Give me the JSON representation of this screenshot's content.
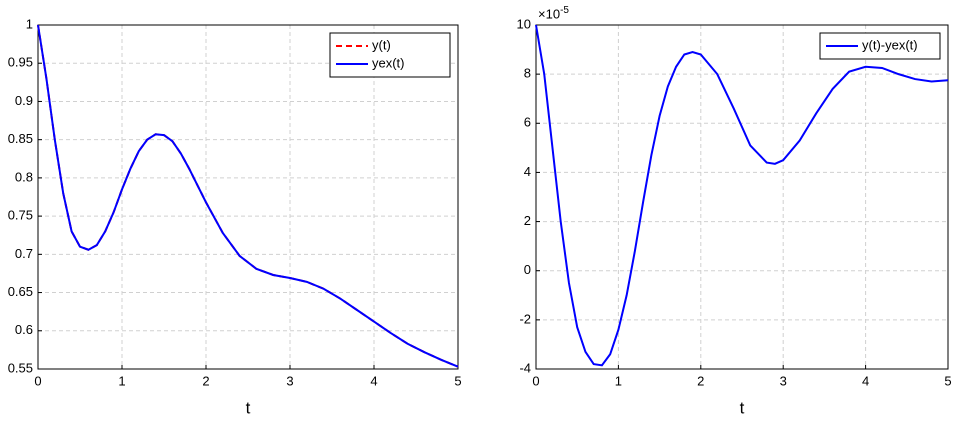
{
  "chart_data": [
    {
      "type": "line",
      "xlabel": "t",
      "x": [
        0,
        0.1,
        0.2,
        0.3,
        0.4,
        0.5,
        0.6,
        0.7,
        0.8,
        0.9,
        1.0,
        1.1,
        1.2,
        1.3,
        1.4,
        1.5,
        1.6,
        1.7,
        1.8,
        1.9,
        2.0,
        2.2,
        2.4,
        2.6,
        2.8,
        3.0,
        3.2,
        3.4,
        3.6,
        3.8,
        4.0,
        4.2,
        4.4,
        4.6,
        4.8,
        5.0
      ],
      "series": [
        {
          "name": "y(t)",
          "color": "#ff0000",
          "dashed": true,
          "values": [
            1.0,
            0.93,
            0.85,
            0.78,
            0.73,
            0.71,
            0.706,
            0.712,
            0.73,
            0.755,
            0.785,
            0.812,
            0.835,
            0.85,
            0.857,
            0.856,
            0.848,
            0.832,
            0.812,
            0.79,
            0.768,
            0.728,
            0.698,
            0.681,
            0.673,
            0.669,
            0.664,
            0.655,
            0.642,
            0.627,
            0.612,
            0.597,
            0.583,
            0.572,
            0.562,
            0.553
          ]
        },
        {
          "name": "yex(t)",
          "color": "#0000ff",
          "dashed": false,
          "values": [
            1.0,
            0.93,
            0.85,
            0.78,
            0.73,
            0.71,
            0.706,
            0.712,
            0.73,
            0.755,
            0.785,
            0.812,
            0.835,
            0.85,
            0.857,
            0.856,
            0.848,
            0.832,
            0.812,
            0.79,
            0.768,
            0.728,
            0.698,
            0.681,
            0.673,
            0.669,
            0.664,
            0.655,
            0.642,
            0.627,
            0.612,
            0.597,
            0.583,
            0.572,
            0.562,
            0.553
          ]
        }
      ],
      "xlim": [
        0,
        5
      ],
      "xticks": [
        0,
        1,
        2,
        3,
        4,
        5
      ],
      "ylim": [
        0.55,
        1
      ],
      "yticks": [
        0.55,
        0.6,
        0.65,
        0.7,
        0.75,
        0.8,
        0.85,
        0.9,
        0.95,
        1
      ],
      "grid": true,
      "legend": "upper right"
    },
    {
      "type": "line",
      "xlabel": "t",
      "y_multiplier": "×10",
      "y_exponent": "-5",
      "x": [
        0,
        0.1,
        0.2,
        0.3,
        0.4,
        0.5,
        0.6,
        0.7,
        0.8,
        0.9,
        1.0,
        1.1,
        1.2,
        1.3,
        1.4,
        1.5,
        1.6,
        1.7,
        1.8,
        1.9,
        2.0,
        2.2,
        2.4,
        2.6,
        2.8,
        2.9,
        3.0,
        3.2,
        3.4,
        3.6,
        3.8,
        4.0,
        4.2,
        4.4,
        4.6,
        4.8,
        5.0
      ],
      "series": [
        {
          "name": "y(t)-yex(t)",
          "color": "#0000ff",
          "dashed": false,
          "values": [
            10,
            8,
            5,
            2,
            -0.5,
            -2.3,
            -3.3,
            -3.8,
            -3.85,
            -3.4,
            -2.4,
            -1,
            0.8,
            2.8,
            4.7,
            6.3,
            7.5,
            8.3,
            8.8,
            8.9,
            8.8,
            8.0,
            6.6,
            5.1,
            4.4,
            4.35,
            4.5,
            5.3,
            6.4,
            7.4,
            8.1,
            8.3,
            8.25,
            8.0,
            7.8,
            7.7,
            7.75
          ]
        }
      ],
      "xlim": [
        0,
        5
      ],
      "xticks": [
        0,
        1,
        2,
        3,
        4,
        5
      ],
      "ylim": [
        -4,
        10
      ],
      "yticks": [
        -4,
        -2,
        0,
        2,
        4,
        6,
        8,
        10
      ],
      "grid": true,
      "legend": "upper right"
    }
  ]
}
